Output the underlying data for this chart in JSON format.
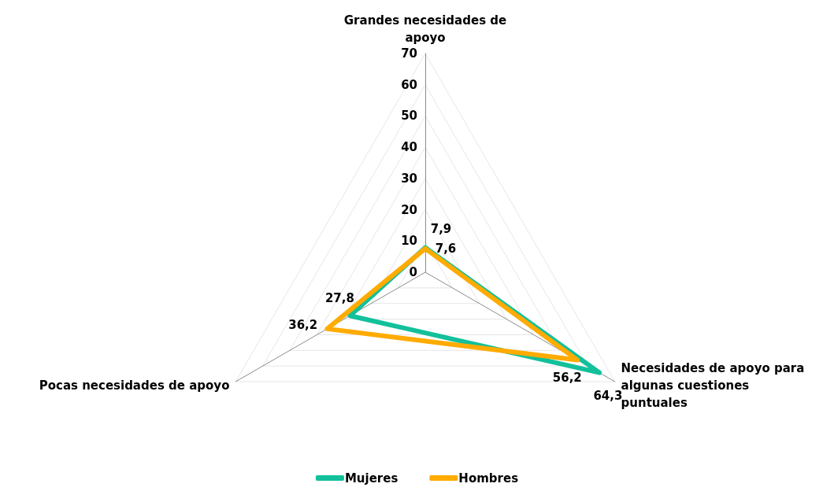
{
  "chart_data": {
    "type": "radar",
    "categories": [
      "Grandes necesidades de apoyo",
      "Necesidades de apoyo para algunas cuestiones puntuales",
      "Pocas necesidades de apoyo"
    ],
    "series": [
      {
        "name": "Mujeres",
        "color": "#12c09b",
        "values": [
          7.9,
          64.3,
          27.8
        ],
        "value_labels": [
          "7,9",
          "64,3",
          "27,8"
        ]
      },
      {
        "name": "Hombres",
        "color": "#ffab00",
        "values": [
          7.6,
          56.2,
          36.2
        ],
        "value_labels": [
          "7,6",
          "56,2",
          "36,2"
        ]
      }
    ],
    "ylim": [
      0,
      70
    ],
    "yticks": [
      0,
      10,
      20,
      30,
      40,
      50,
      60,
      70
    ],
    "grid": true,
    "legend": "bottom",
    "marker": "none"
  }
}
